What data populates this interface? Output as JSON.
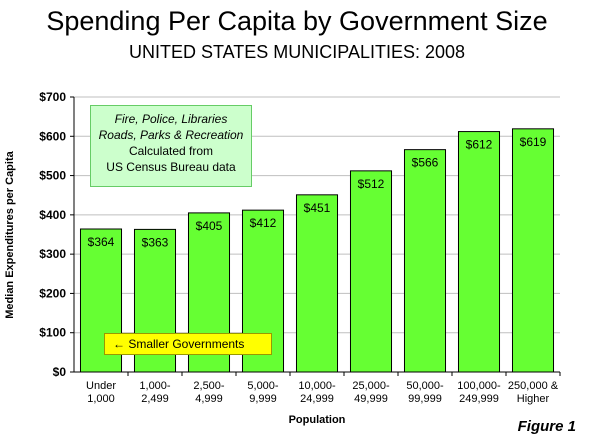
{
  "header": {
    "title": "Spending Per Capita by Government Size",
    "subtitle": "UNITED STATES MUNICIPALITIES: 2008"
  },
  "note_box": {
    "line1": "Fire, Police, Libraries",
    "line2": "Roads, Parks & Recreation",
    "line3": "Calculated from",
    "line4": "US Census Bureau data"
  },
  "small_gov_label": "← Smaller Governments",
  "figure_label": "Figure 1",
  "colors": {
    "bar_fill": "#66ff33",
    "bar_stroke": "#000000",
    "note_bg": "#ccffcc",
    "callout_bg": "#ffff00",
    "grid": "#bfbfbf"
  },
  "chart_data": {
    "type": "bar",
    "title": "Spending Per Capita by Government Size",
    "subtitle": "UNITED STATES MUNICIPALITIES: 2008",
    "xlabel": "Population",
    "ylabel": "Median Expenditures per Capita",
    "categories": [
      [
        "Under",
        "1,000"
      ],
      [
        "1,000-",
        "2,499"
      ],
      [
        "2,500-",
        "4,999"
      ],
      [
        "5,000-",
        "9,999"
      ],
      [
        "10,000-",
        "24,999"
      ],
      [
        "25,000-",
        "49,999"
      ],
      [
        "50,000-",
        "99,999"
      ],
      [
        "100,000-",
        "249,999"
      ],
      [
        "250,000 &",
        "Higher"
      ]
    ],
    "values": [
      364,
      363,
      405,
      412,
      451,
      512,
      566,
      612,
      619
    ],
    "value_labels": [
      "$364",
      "$363",
      "$405",
      "$412",
      "$451",
      "$512",
      "$566",
      "$612",
      "$619"
    ],
    "ylim": [
      0,
      700
    ],
    "yticks": [
      0,
      100,
      200,
      300,
      400,
      500,
      600,
      700
    ],
    "ytick_labels": [
      "$0",
      "$100",
      "$200",
      "$300",
      "$400",
      "$500",
      "$600",
      "$700"
    ],
    "grid": true,
    "legend": "none"
  }
}
